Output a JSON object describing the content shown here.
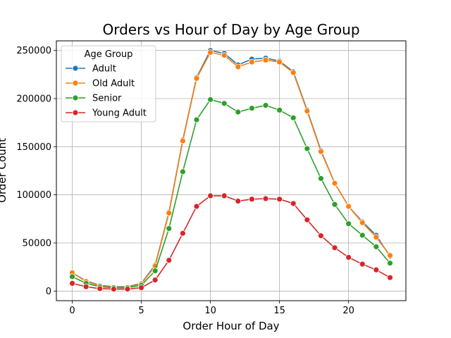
{
  "chart_data": {
    "type": "line",
    "title": "Orders vs Hour of Day by Age Group",
    "xlabel": "Order Hour of Day",
    "ylabel": "Order Count",
    "xlim": [
      -1.15,
      24.15
    ],
    "ylim": [
      -10000,
      260000
    ],
    "xticks": [
      0,
      5,
      10,
      15,
      20
    ],
    "yticks": [
      0,
      50000,
      100000,
      150000,
      200000,
      250000
    ],
    "grid": true,
    "legend": {
      "title": "Age Group",
      "placement": "upper left"
    },
    "x": [
      0,
      1,
      2,
      3,
      4,
      5,
      6,
      7,
      8,
      9,
      10,
      11,
      12,
      13,
      14,
      15,
      16,
      17,
      18,
      19,
      20,
      21,
      22,
      23
    ],
    "series": [
      {
        "name": "Adult",
        "color": "#1f77b4",
        "values": [
          19000,
          10500,
          6000,
          4500,
          4500,
          8000,
          27000,
          82000,
          157000,
          222000,
          250000,
          247000,
          235000,
          241000,
          242000,
          239000,
          228000,
          188000,
          146000,
          112000,
          88000,
          72000,
          58000,
          36000
        ]
      },
      {
        "name": "Old Adult",
        "color": "#ff7f0e",
        "values": [
          19000,
          10000,
          5500,
          4000,
          4000,
          7500,
          26000,
          81000,
          156000,
          221000,
          248000,
          245000,
          233000,
          238000,
          240000,
          238000,
          227000,
          187000,
          145000,
          112000,
          88000,
          71000,
          56000,
          37000
        ]
      },
      {
        "name": "Senior",
        "color": "#2ca02c",
        "values": [
          15000,
          8000,
          4500,
          3500,
          3500,
          6000,
          21000,
          65000,
          124000,
          178000,
          199000,
          195000,
          186000,
          190000,
          193000,
          188000,
          180000,
          148000,
          117000,
          90000,
          70000,
          58000,
          46000,
          29000
        ]
      },
      {
        "name": "Young Adult",
        "color": "#d62728",
        "values": [
          8000,
          4500,
          2500,
          2000,
          2000,
          3500,
          11500,
          32000,
          60000,
          88000,
          99000,
          99000,
          93500,
          95500,
          96000,
          95500,
          91000,
          74000,
          57500,
          45000,
          35000,
          28000,
          22000,
          14000
        ]
      }
    ]
  }
}
